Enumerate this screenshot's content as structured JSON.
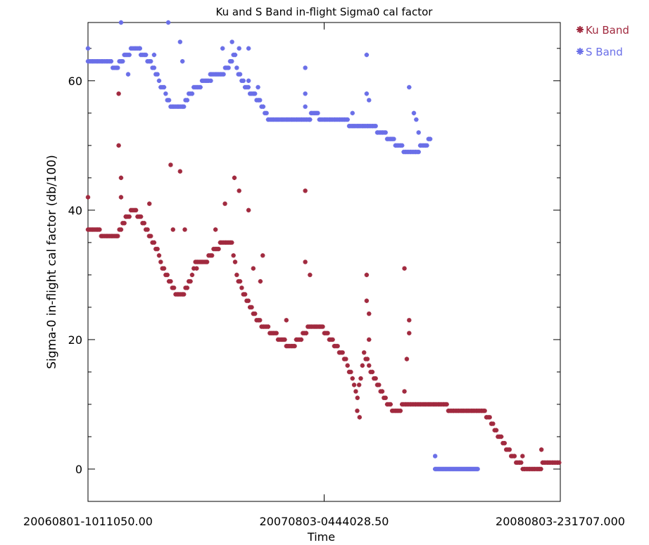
{
  "chart_data": {
    "type": "scatter",
    "title": "Ku and S Band in-flight Sigma0 cal factor",
    "xlabel": "Time",
    "ylabel": "Sigma-0 in-flight cal factor (db/100)",
    "xlim": [
      "20060801-1011050.00",
      "20080803-231707.000"
    ],
    "ylim": [
      -5,
      69
    ],
    "x_ticks": [
      "20060801-1011050.00",
      "20070803-0444028.50",
      "20080803-231707.000"
    ],
    "y_ticks": [
      0,
      20,
      40,
      60
    ],
    "legend_position": "top-right, outside plot",
    "marker": "asterisk",
    "x_units_note": "fraction of time span between first and last x tick labels",
    "series": [
      {
        "name": "Ku Band",
        "color": "#a12a3f",
        "trend": [
          [
            0.0,
            37
          ],
          [
            0.02,
            37
          ],
          [
            0.035,
            36
          ],
          [
            0.06,
            36
          ],
          [
            0.075,
            38
          ],
          [
            0.095,
            40
          ],
          [
            0.11,
            39
          ],
          [
            0.13,
            36
          ],
          [
            0.145,
            34
          ],
          [
            0.16,
            31
          ],
          [
            0.175,
            29
          ],
          [
            0.185,
            27
          ],
          [
            0.2,
            27
          ],
          [
            0.215,
            29
          ],
          [
            0.23,
            32
          ],
          [
            0.25,
            32
          ],
          [
            0.27,
            34
          ],
          [
            0.29,
            35
          ],
          [
            0.305,
            35
          ],
          [
            0.315,
            30
          ],
          [
            0.33,
            27
          ],
          [
            0.345,
            25
          ],
          [
            0.36,
            23
          ],
          [
            0.375,
            22
          ],
          [
            0.39,
            21
          ],
          [
            0.41,
            20
          ],
          [
            0.43,
            19
          ],
          [
            0.45,
            20
          ],
          [
            0.47,
            22
          ],
          [
            0.49,
            22
          ],
          [
            0.505,
            21
          ],
          [
            0.525,
            19
          ],
          [
            0.545,
            17
          ],
          [
            0.56,
            14
          ],
          [
            0.57,
            11
          ],
          [
            0.585,
            18
          ],
          [
            0.6,
            15
          ],
          [
            0.62,
            12
          ],
          [
            0.635,
            10
          ],
          [
            0.65,
            9
          ],
          [
            0.675,
            10
          ],
          [
            0.7,
            10
          ],
          [
            0.725,
            10
          ],
          [
            0.75,
            10
          ],
          [
            0.775,
            9
          ],
          [
            0.8,
            9
          ],
          [
            0.83,
            9
          ],
          [
            0.85,
            8
          ],
          [
            0.87,
            5
          ],
          [
            0.89,
            3
          ],
          [
            0.91,
            1
          ],
          [
            0.93,
            0
          ],
          [
            0.95,
            0
          ],
          [
            0.97,
            1
          ],
          [
            0.985,
            1
          ],
          [
            1.0,
            1
          ]
        ],
        "outliers": [
          [
            0.0,
            42
          ],
          [
            0.065,
            58
          ],
          [
            0.065,
            50
          ],
          [
            0.07,
            45
          ],
          [
            0.07,
            42
          ],
          [
            0.08,
            39
          ],
          [
            0.13,
            41
          ],
          [
            0.175,
            47
          ],
          [
            0.195,
            46
          ],
          [
            0.18,
            37
          ],
          [
            0.205,
            37
          ],
          [
            0.23,
            31
          ],
          [
            0.27,
            37
          ],
          [
            0.29,
            41
          ],
          [
            0.31,
            45
          ],
          [
            0.32,
            43
          ],
          [
            0.34,
            40
          ],
          [
            0.35,
            31
          ],
          [
            0.37,
            33
          ],
          [
            0.365,
            29
          ],
          [
            0.42,
            23
          ],
          [
            0.46,
            43
          ],
          [
            0.46,
            32
          ],
          [
            0.47,
            30
          ],
          [
            0.57,
            9
          ],
          [
            0.575,
            8
          ],
          [
            0.59,
            30
          ],
          [
            0.59,
            26
          ],
          [
            0.595,
            24
          ],
          [
            0.67,
            31
          ],
          [
            0.68,
            23
          ],
          [
            0.68,
            21
          ],
          [
            0.675,
            17
          ],
          [
            0.67,
            12
          ],
          [
            0.595,
            20
          ],
          [
            0.92,
            2
          ],
          [
            0.96,
            3
          ]
        ]
      },
      {
        "name": "S Band",
        "color": "#6a6fe8",
        "trend": [
          [
            0.0,
            63
          ],
          [
            0.02,
            63
          ],
          [
            0.04,
            63
          ],
          [
            0.06,
            62
          ],
          [
            0.08,
            64
          ],
          [
            0.1,
            65
          ],
          [
            0.12,
            64
          ],
          [
            0.14,
            62
          ],
          [
            0.15,
            60
          ],
          [
            0.165,
            58
          ],
          [
            0.175,
            56
          ],
          [
            0.19,
            56
          ],
          [
            0.2,
            56
          ],
          [
            0.215,
            58
          ],
          [
            0.23,
            59
          ],
          [
            0.25,
            60
          ],
          [
            0.265,
            61
          ],
          [
            0.285,
            61
          ],
          [
            0.295,
            62
          ],
          [
            0.31,
            64
          ],
          [
            0.32,
            61
          ],
          [
            0.335,
            59
          ],
          [
            0.35,
            58
          ],
          [
            0.36,
            57
          ],
          [
            0.37,
            56
          ],
          [
            0.385,
            54
          ],
          [
            0.4,
            54
          ],
          [
            0.42,
            54
          ],
          [
            0.445,
            54
          ],
          [
            0.465,
            54
          ],
          [
            0.48,
            55
          ],
          [
            0.5,
            54
          ],
          [
            0.52,
            54
          ],
          [
            0.54,
            54
          ],
          [
            0.56,
            53
          ],
          [
            0.58,
            53
          ],
          [
            0.6,
            53
          ],
          [
            0.62,
            52
          ],
          [
            0.64,
            51
          ],
          [
            0.66,
            50
          ],
          [
            0.675,
            49
          ],
          [
            0.69,
            49
          ],
          [
            0.71,
            50
          ],
          [
            0.725,
            51
          ]
        ],
        "outliers": [
          [
            0.0,
            65
          ],
          [
            0.07,
            69
          ],
          [
            0.07,
            63
          ],
          [
            0.085,
            61
          ],
          [
            0.11,
            65
          ],
          [
            0.14,
            64
          ],
          [
            0.17,
            69
          ],
          [
            0.195,
            66
          ],
          [
            0.2,
            63
          ],
          [
            0.26,
            60
          ],
          [
            0.285,
            65
          ],
          [
            0.305,
            66
          ],
          [
            0.32,
            65
          ],
          [
            0.34,
            65
          ],
          [
            0.34,
            60
          ],
          [
            0.36,
            59
          ],
          [
            0.46,
            62
          ],
          [
            0.46,
            58
          ],
          [
            0.46,
            56
          ],
          [
            0.47,
            54
          ],
          [
            0.59,
            64
          ],
          [
            0.59,
            58
          ],
          [
            0.595,
            57
          ],
          [
            0.68,
            59
          ],
          [
            0.69,
            55
          ],
          [
            0.695,
            54
          ],
          [
            0.7,
            52
          ],
          [
            0.56,
            55
          ],
          [
            0.735,
            2
          ]
        ],
        "flat_segment": {
          "x_start": 0.735,
          "x_end": 0.825,
          "y": 0
        }
      }
    ]
  }
}
